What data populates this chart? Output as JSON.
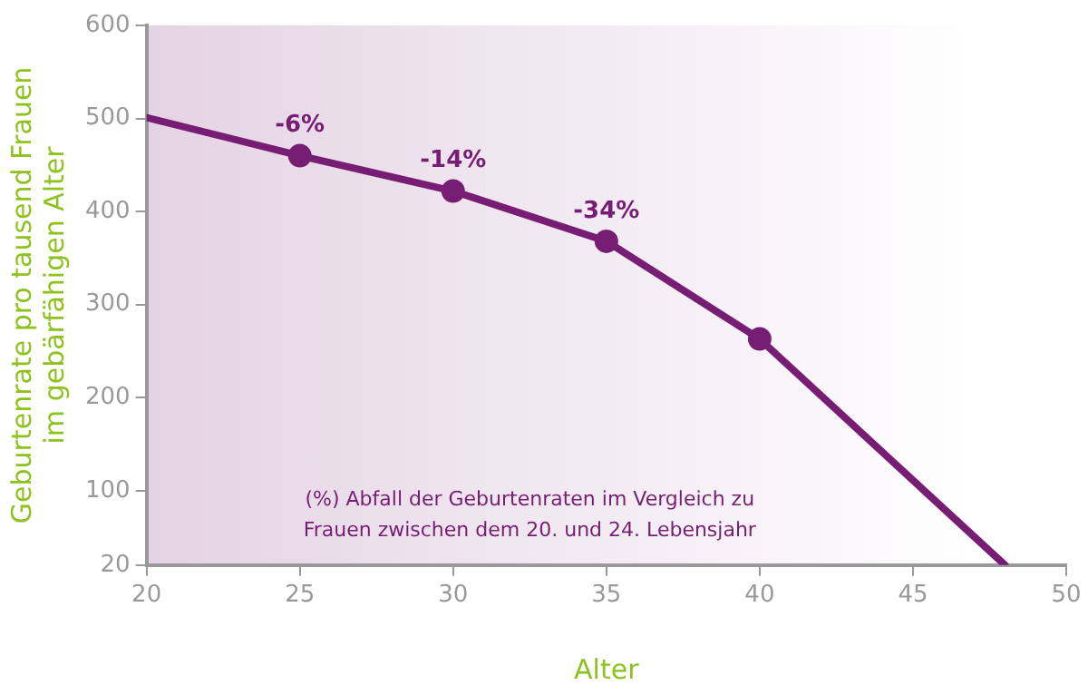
{
  "chart_data": {
    "type": "line",
    "xlabel": "Alter",
    "ylabel": "Geburtenrate pro tausend Frauen\nim gebärfähigen Alter",
    "xlim": [
      20,
      50
    ],
    "xticks": [
      20,
      25,
      30,
      35,
      40,
      45,
      50
    ],
    "ylim": [
      20,
      600
    ],
    "yticks": [
      20,
      100,
      200,
      300,
      400,
      500,
      600
    ],
    "grid": false,
    "legend": false,
    "line_style": "solid",
    "series": [
      {
        "type": "line",
        "marker": "none",
        "color": "#771e74",
        "x": [
          20,
          25,
          30,
          35,
          40,
          48
        ],
        "values": [
          501,
          460,
          422,
          368,
          263,
          20
        ]
      },
      {
        "type": "scatter",
        "marker": "circle",
        "color": "#771e74",
        "x": [
          25,
          30,
          35,
          40
        ],
        "values": [
          460,
          422,
          368,
          263
        ]
      }
    ],
    "annotations": [
      {
        "text": "-6%",
        "x": 25,
        "y": 460
      },
      {
        "text": "-14%",
        "x": 30,
        "y": 422
      },
      {
        "text": "-34%",
        "x": 35,
        "y": 368
      },
      "(%) Abfall der Geburtenraten im Vergleich zu\nFrauen zwischen dem 20. und 24. Lebensjahr"
    ]
  }
}
